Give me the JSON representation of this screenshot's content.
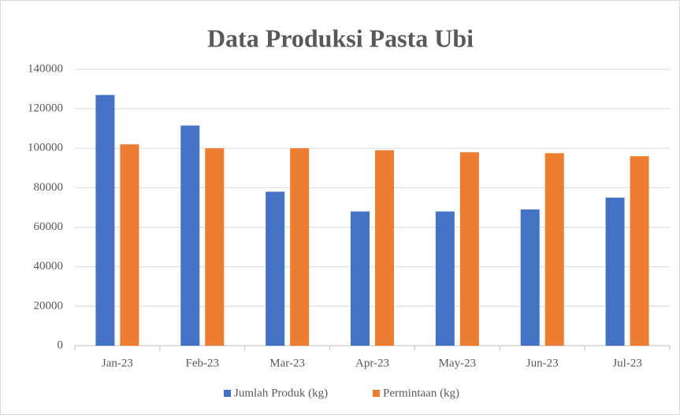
{
  "chart_data": {
    "type": "bar",
    "title": "Data Produksi Pasta Ubi",
    "categories": [
      "Jan-23",
      "Feb-23",
      "Mar-23",
      "Apr-23",
      "May-23",
      "Jun-23",
      "Jul-23"
    ],
    "series": [
      {
        "name": "Jumlah Produk (kg)",
        "color": "#4472c4",
        "values": [
          127000,
          111500,
          78000,
          68000,
          68000,
          69000,
          75000
        ]
      },
      {
        "name": "Permintaan (kg)",
        "color": "#ed7d31",
        "values": [
          102000,
          100000,
          100000,
          99000,
          98000,
          97500,
          96000
        ]
      }
    ],
    "ylim": [
      0,
      140000
    ],
    "yticks": [
      0,
      20000,
      40000,
      60000,
      80000,
      100000,
      120000,
      140000
    ],
    "grid": true,
    "legend": "bottom"
  }
}
